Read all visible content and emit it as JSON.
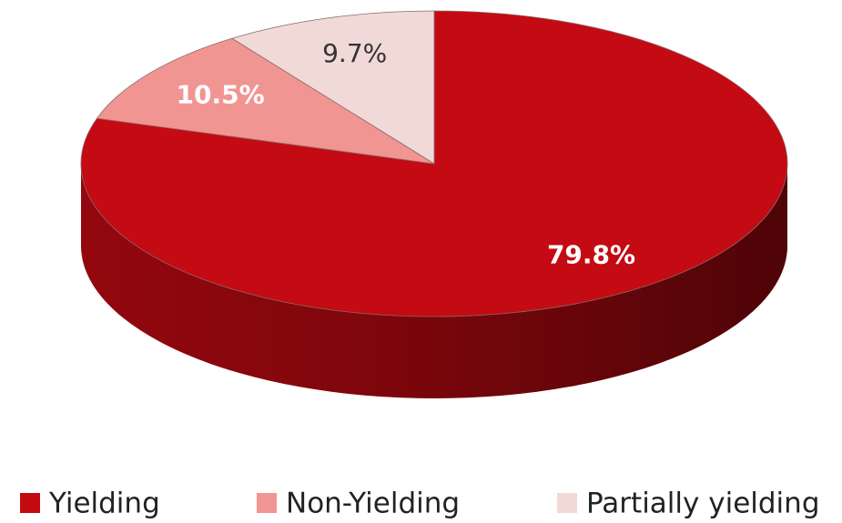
{
  "chart_data": {
    "type": "pie",
    "categories": [
      "Yielding",
      "Non-Yielding",
      "Partially yielding"
    ],
    "values": [
      79.8,
      10.5,
      9.7
    ],
    "value_labels": [
      "79.8%",
      "10.5%",
      "9.7%"
    ],
    "colors": [
      "#c40a12",
      "#f19592",
      "#f0d9d7"
    ],
    "legend": "bottom"
  }
}
